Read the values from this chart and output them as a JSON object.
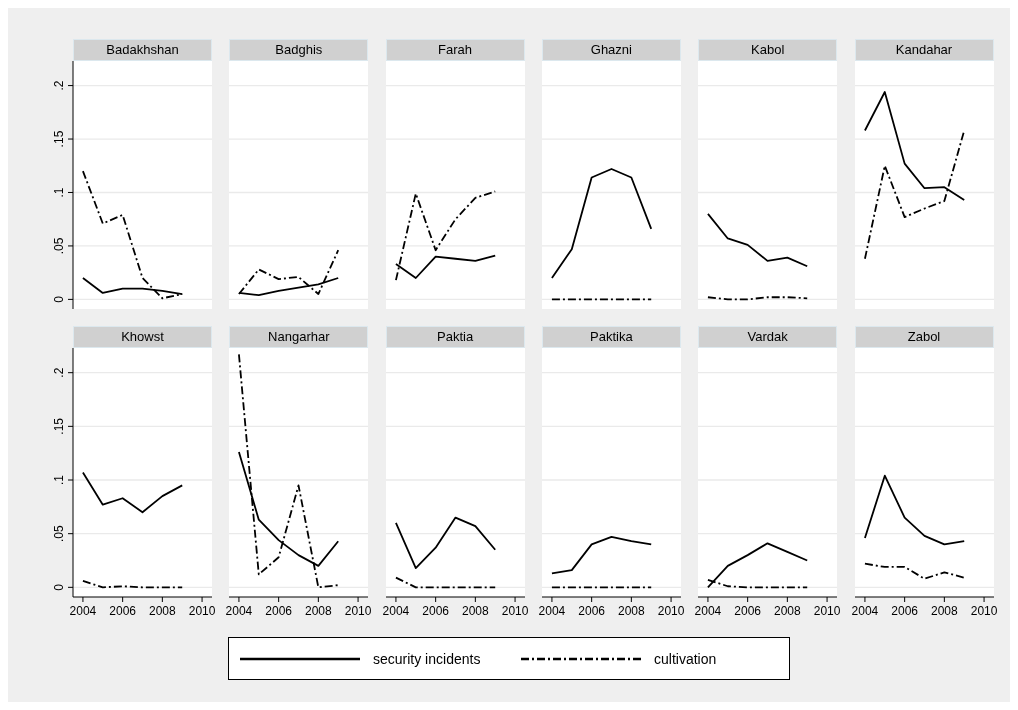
{
  "chart_data": [
    {
      "type": "line",
      "title": "Badakhshan",
      "x": [
        2004,
        2005,
        2006,
        2007,
        2008,
        2009
      ],
      "series": [
        {
          "name": "security incidents",
          "color": "#000000",
          "line_style": "solid",
          "values": [
            0.02,
            0.006,
            0.01,
            0.01,
            0.008,
            0.005
          ]
        },
        {
          "name": "cultivation",
          "color": "#000000",
          "line_style": "dashed",
          "values": [
            0.12,
            0.071,
            0.079,
            0.02,
            0.001,
            0.005
          ]
        }
      ],
      "xlim": [
        2003.5,
        2010.5
      ],
      "ylim": [
        -0.009,
        0.223
      ],
      "yticks": [
        0,
        {
          "value": 0.05,
          "label": ".05"
        },
        {
          "value": 0.1,
          "label": ".1"
        },
        {
          "value": 0.15,
          "label": ".15"
        },
        {
          "value": 0.2,
          "label": ".2"
        }
      ],
      "grid": "y",
      "tick_labels": "y",
      "legend": "bottom"
    },
    {
      "type": "line",
      "title": "Badghis",
      "x": [
        2004,
        2005,
        2006,
        2007,
        2008,
        2009
      ],
      "series": [
        {
          "color": "#000000",
          "line_style": "solid",
          "values": [
            0.006,
            0.004,
            0.008,
            0.011,
            0.014,
            0.02
          ]
        },
        {
          "color": "#000000",
          "line_style": "dashed",
          "values": [
            0.005,
            0.028,
            0.019,
            0.021,
            0.005,
            0.046
          ]
        }
      ],
      "xlim": [
        2003.5,
        2010.5
      ],
      "ylim": [
        -0.009,
        0.223
      ],
      "yticks": [
        {
          "value": 0,
          "label": null
        },
        {
          "value": 0.05,
          "label": null
        },
        {
          "value": 0.1,
          "label": null
        },
        {
          "value": 0.15,
          "label": null
        },
        {
          "value": 0.2,
          "label": null
        }
      ],
      "grid": "y",
      "tick_labels": false
    },
    {
      "type": "line",
      "title": "Farah",
      "x": [
        2004,
        2005,
        2006,
        2007,
        2008,
        2009
      ],
      "series": [
        {
          "color": "#000000",
          "line_style": "solid",
          "values": [
            0.033,
            0.02,
            0.04,
            0.038,
            0.036,
            0.041
          ]
        },
        {
          "color": "#000000",
          "line_style": "dashed",
          "values": [
            0.018,
            0.099,
            0.046,
            0.075,
            0.095,
            0.101
          ]
        }
      ],
      "xlim": [
        2003.5,
        2010.5
      ],
      "ylim": [
        -0.009,
        0.223
      ],
      "yticks": [
        {
          "value": 0,
          "label": null
        },
        {
          "value": 0.05,
          "label": null
        },
        {
          "value": 0.1,
          "label": null
        },
        {
          "value": 0.15,
          "label": null
        },
        {
          "value": 0.2,
          "label": null
        }
      ],
      "grid": "y",
      "tick_labels": false
    },
    {
      "type": "line",
      "title": "Ghazni",
      "x": [
        2004,
        2005,
        2006,
        2007,
        2008,
        2009
      ],
      "series": [
        {
          "color": "#000000",
          "line_style": "solid",
          "values": [
            0.02,
            0.047,
            0.114,
            0.122,
            0.114,
            0.066
          ]
        },
        {
          "color": "#000000",
          "line_style": "dashed",
          "values": [
            0,
            0,
            0,
            0,
            0,
            0
          ]
        }
      ],
      "xlim": [
        2003.5,
        2010.5
      ],
      "ylim": [
        -0.009,
        0.223
      ],
      "yticks": [
        {
          "value": 0,
          "label": null
        },
        {
          "value": 0.05,
          "label": null
        },
        {
          "value": 0.1,
          "label": null
        },
        {
          "value": 0.15,
          "label": null
        },
        {
          "value": 0.2,
          "label": null
        }
      ],
      "grid": "y",
      "tick_labels": false
    },
    {
      "type": "line",
      "title": "Kabol",
      "x": [
        2004,
        2005,
        2006,
        2007,
        2008,
        2009
      ],
      "series": [
        {
          "color": "#000000",
          "line_style": "solid",
          "values": [
            0.08,
            0.057,
            0.051,
            0.036,
            0.039,
            0.031
          ]
        },
        {
          "color": "#000000",
          "line_style": "dashed",
          "values": [
            0.002,
            0,
            0,
            0.002,
            0.002,
            0.001
          ]
        }
      ],
      "xlim": [
        2003.5,
        2010.5
      ],
      "ylim": [
        -0.009,
        0.223
      ],
      "yticks": [
        {
          "value": 0,
          "label": null
        },
        {
          "value": 0.05,
          "label": null
        },
        {
          "value": 0.1,
          "label": null
        },
        {
          "value": 0.15,
          "label": null
        },
        {
          "value": 0.2,
          "label": null
        }
      ],
      "grid": "y",
      "tick_labels": false
    },
    {
      "type": "line",
      "title": "Kandahar",
      "x": [
        2004,
        2005,
        2006,
        2007,
        2008,
        2009
      ],
      "series": [
        {
          "color": "#000000",
          "line_style": "solid",
          "values": [
            0.158,
            0.194,
            0.127,
            0.104,
            0.105,
            0.093
          ]
        },
        {
          "color": "#000000",
          "line_style": "dashed",
          "values": [
            0.038,
            0.125,
            0.077,
            0.085,
            0.092,
            0.158
          ]
        }
      ],
      "xlim": [
        2003.5,
        2010.5
      ],
      "ylim": [
        -0.009,
        0.223
      ],
      "yticks": [
        {
          "value": 0,
          "label": null
        },
        {
          "value": 0.05,
          "label": null
        },
        {
          "value": 0.1,
          "label": null
        },
        {
          "value": 0.15,
          "label": null
        },
        {
          "value": 0.2,
          "label": null
        }
      ],
      "grid": "y",
      "tick_labels": false
    },
    {
      "type": "line",
      "title": "Khowst",
      "x": [
        2004,
        2005,
        2006,
        2007,
        2008,
        2009
      ],
      "series": [
        {
          "color": "#000000",
          "line_style": "solid",
          "values": [
            0.107,
            0.077,
            0.083,
            0.07,
            0.085,
            0.095
          ]
        },
        {
          "color": "#000000",
          "line_style": "dashed",
          "values": [
            0.006,
            0,
            0.001,
            0,
            0,
            0
          ]
        }
      ],
      "xlim": [
        2003.5,
        2010.5
      ],
      "ylim": [
        -0.009,
        0.223
      ],
      "xticks": [
        2004,
        2006,
        2008,
        2010
      ],
      "yticks": [
        0,
        {
          "value": 0.05,
          "label": ".05"
        },
        {
          "value": 0.1,
          "label": ".1"
        },
        {
          "value": 0.15,
          "label": ".15"
        },
        {
          "value": 0.2,
          "label": ".2"
        }
      ],
      "grid": "y"
    },
    {
      "type": "line",
      "title": "Nangarhar",
      "x": [
        2004,
        2005,
        2006,
        2007,
        2008,
        2009
      ],
      "series": [
        {
          "color": "#000000",
          "line_style": "solid",
          "values": [
            0.126,
            0.063,
            0.044,
            0.03,
            0.02,
            0.043
          ]
        },
        {
          "color": "#000000",
          "line_style": "dashed",
          "values": [
            0.217,
            0.012,
            0.028,
            0.095,
            0,
            0.002
          ]
        }
      ],
      "xlim": [
        2003.5,
        2010.5
      ],
      "ylim": [
        -0.009,
        0.223
      ],
      "xticks": [
        2004,
        2006,
        2008,
        2010
      ],
      "yticks": [
        {
          "value": 0,
          "label": null
        },
        {
          "value": 0.05,
          "label": null
        },
        {
          "value": 0.1,
          "label": null
        },
        {
          "value": 0.15,
          "label": null
        },
        {
          "value": 0.2,
          "label": null
        }
      ],
      "grid": "y",
      "tick_labels": "x"
    },
    {
      "type": "line",
      "title": "Paktia",
      "x": [
        2004,
        2005,
        2006,
        2007,
        2008,
        2009
      ],
      "series": [
        {
          "color": "#000000",
          "line_style": "solid",
          "values": [
            0.06,
            0.018,
            0.037,
            0.065,
            0.057,
            0.035
          ]
        },
        {
          "color": "#000000",
          "line_style": "dashed",
          "values": [
            0.009,
            0,
            0,
            0,
            0,
            0
          ]
        }
      ],
      "xlim": [
        2003.5,
        2010.5
      ],
      "ylim": [
        -0.009,
        0.223
      ],
      "xticks": [
        2004,
        2006,
        2008,
        2010
      ],
      "yticks": [
        {
          "value": 0,
          "label": null
        },
        {
          "value": 0.05,
          "label": null
        },
        {
          "value": 0.1,
          "label": null
        },
        {
          "value": 0.15,
          "label": null
        },
        {
          "value": 0.2,
          "label": null
        }
      ],
      "grid": "y",
      "tick_labels": "x"
    },
    {
      "type": "line",
      "title": "Paktika",
      "x": [
        2004,
        2005,
        2006,
        2007,
        2008,
        2009
      ],
      "series": [
        {
          "color": "#000000",
          "line_style": "solid",
          "values": [
            0.013,
            0.016,
            0.04,
            0.047,
            0.043,
            0.04
          ]
        },
        {
          "color": "#000000",
          "line_style": "dashed",
          "values": [
            0,
            0,
            0,
            0,
            0,
            0
          ]
        }
      ],
      "xlim": [
        2003.5,
        2010.5
      ],
      "ylim": [
        -0.009,
        0.223
      ],
      "xticks": [
        2004,
        2006,
        2008,
        2010
      ],
      "yticks": [
        {
          "value": 0,
          "label": null
        },
        {
          "value": 0.05,
          "label": null
        },
        {
          "value": 0.1,
          "label": null
        },
        {
          "value": 0.15,
          "label": null
        },
        {
          "value": 0.2,
          "label": null
        }
      ],
      "grid": "y",
      "tick_labels": "x"
    },
    {
      "type": "line",
      "title": "Vardak",
      "x": [
        2004,
        2005,
        2006,
        2007,
        2008,
        2009
      ],
      "series": [
        {
          "color": "#000000",
          "line_style": "solid",
          "values": [
            0,
            0.02,
            0.03,
            0.041,
            0.033,
            0.025
          ]
        },
        {
          "color": "#000000",
          "line_style": "dashed",
          "values": [
            0.007,
            0.001,
            0,
            0,
            0,
            0
          ]
        }
      ],
      "xlim": [
        2003.5,
        2010.5
      ],
      "ylim": [
        -0.009,
        0.223
      ],
      "xticks": [
        2004,
        2006,
        2008,
        2010
      ],
      "yticks": [
        {
          "value": 0,
          "label": null
        },
        {
          "value": 0.05,
          "label": null
        },
        {
          "value": 0.1,
          "label": null
        },
        {
          "value": 0.15,
          "label": null
        },
        {
          "value": 0.2,
          "label": null
        }
      ],
      "grid": "y",
      "tick_labels": "x"
    },
    {
      "type": "line",
      "title": "Zabol",
      "x": [
        2004,
        2005,
        2006,
        2007,
        2008,
        2009
      ],
      "series": [
        {
          "color": "#000000",
          "line_style": "solid",
          "values": [
            0.046,
            0.104,
            0.065,
            0.048,
            0.04,
            0.043
          ]
        },
        {
          "color": "#000000",
          "line_style": "dashed",
          "values": [
            0.022,
            0.019,
            0.019,
            0.008,
            0.014,
            0.009
          ]
        }
      ],
      "xlim": [
        2003.5,
        2010.5
      ],
      "ylim": [
        -0.009,
        0.223
      ],
      "xticks": [
        2004,
        2006,
        2008,
        2010
      ],
      "yticks": [
        {
          "value": 0,
          "label": null
        },
        {
          "value": 0.05,
          "label": null
        },
        {
          "value": 0.1,
          "label": null
        },
        {
          "value": 0.15,
          "label": null
        },
        {
          "value": 0.2,
          "label": null
        }
      ],
      "grid": "y",
      "tick_labels": "x"
    }
  ]
}
